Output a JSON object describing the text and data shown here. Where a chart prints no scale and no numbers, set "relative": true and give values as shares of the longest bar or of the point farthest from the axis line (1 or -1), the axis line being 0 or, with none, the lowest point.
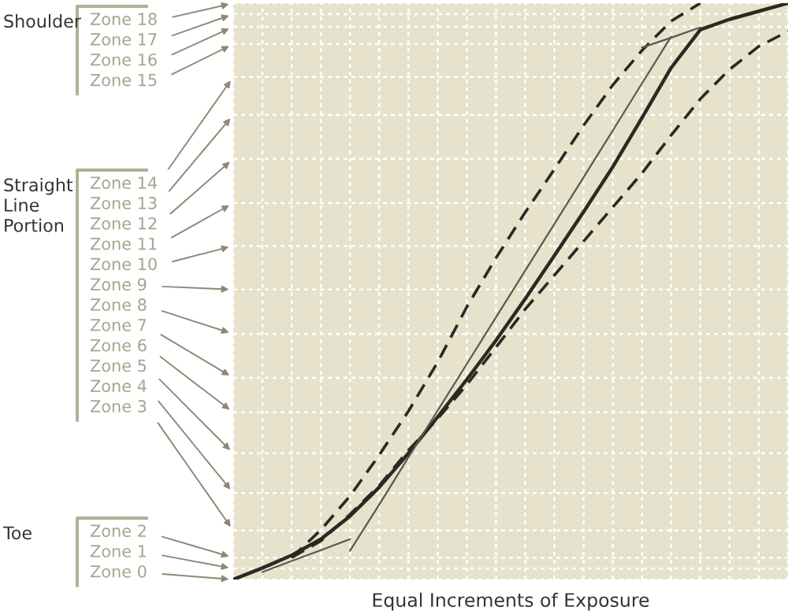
{
  "chart_data": {
    "type": "line",
    "relative": true,
    "xlabel": "Equal Increments of Exposure",
    "categories": [
      null,
      null,
      null,
      null,
      null,
      null,
      null,
      null,
      null,
      null,
      null,
      null,
      null,
      null,
      null,
      null,
      null,
      null,
      null,
      null
    ],
    "tick_labels": false,
    "grid": "x",
    "legend": false,
    "marker": "none",
    "series": [
      {
        "color": "#2b2a22",
        "line_style": "solid",
        "values": [
          0,
          0.02,
          0.042,
          0.07,
          0.11,
          0.16,
          0.219,
          0.282,
          0.347,
          0.415,
          0.487,
          0.562,
          0.638,
          0.716,
          0.801,
          0.888,
          0.954,
          0.972,
          0.986,
          1.0
        ]
      },
      {
        "color": "#2b2a22",
        "line_style": "dashed",
        "values": [
          null,
          null,
          0.038,
          0.086,
          0.145,
          0.216,
          0.292,
          0.377,
          0.473,
          0.558,
          0.637,
          0.712,
          0.788,
          0.858,
          0.918,
          0.969,
          1.0,
          null,
          null,
          null
        ]
      },
      {
        "color": "#2b2a22",
        "line_style": "dashed",
        "values": [
          null,
          null,
          0.038,
          0.067,
          0.113,
          0.163,
          0.224,
          0.279,
          0.338,
          0.403,
          0.469,
          0.528,
          0.587,
          0.646,
          0.705,
          0.771,
          0.834,
          0.885,
          0.925,
          0.951
        ]
      },
      {
        "color": "#5a5950",
        "line_style": "solid",
        "values": [
          null,
          null,
          null,
          null,
          0.05,
          0.13,
          0.212,
          0.293,
          0.374,
          0.455,
          0.536,
          0.617,
          0.698,
          0.779,
          0.861,
          0.942,
          null,
          null,
          null,
          null
        ]
      },
      {
        "color": "#5a5950",
        "line_style": "solid",
        "values": [
          null,
          0.013,
          0.032,
          0.051,
          0.07,
          null,
          null,
          null,
          null,
          null,
          null,
          null,
          null,
          null,
          null,
          null,
          null,
          null,
          null,
          null
        ]
      },
      {
        "color": "#5a5950",
        "line_style": "solid",
        "values": [
          null,
          null,
          null,
          null,
          null,
          null,
          null,
          null,
          null,
          null,
          null,
          null,
          null,
          null,
          0.923,
          0.94,
          0.958,
          null,
          null,
          null
        ]
      }
    ],
    "annotations": [
      "Shoulder",
      "Zone 18",
      "Zone 17",
      "Zone 16",
      "Zone 15",
      "Straight Line Portion",
      "Zone 14",
      "Zone 13",
      "Zone 12",
      "Zone 11",
      "Zone 10",
      "Zone 9",
      "Zone 8",
      "Zone 7",
      "Zone 6",
      "Zone 5",
      "Zone 4",
      "Zone 3",
      "Toe",
      "Zone 2",
      "Zone 1",
      "Zone 0"
    ]
  }
}
